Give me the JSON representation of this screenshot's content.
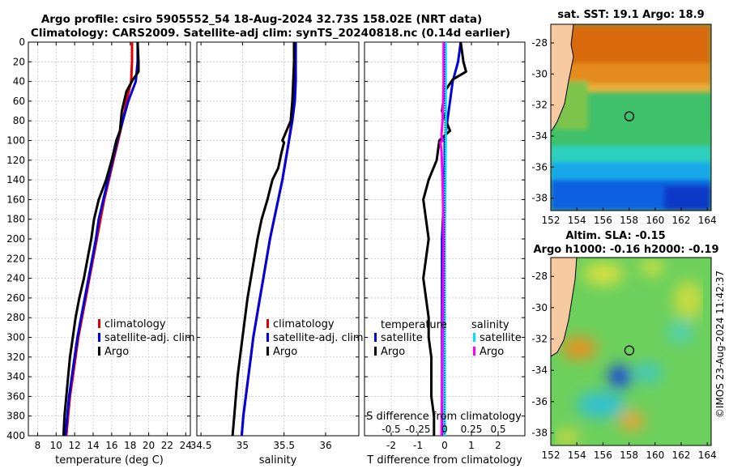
{
  "header": {
    "title_line1": "Argo profile: csiro 5905552_54 18-Aug-2024 32.73S 158.02E (NRT data)",
    "title_line2": "Climatology: CARS2009. Satellite-adj clim: synTS_20240818.nc (0.14d earlier)"
  },
  "credit": "©IMOS 23-Aug-2024 11:42:37",
  "colors": {
    "climatology": "#e00000",
    "satellite": "#0000e0",
    "argo": "#000000",
    "salinity_satellite": "#00e0ff",
    "salinity_argo": "#ff00ff",
    "land": "#f7c9a0",
    "grid": "#b8b8b8"
  },
  "chart_data": [
    {
      "type": "line",
      "name": "temperature-profile",
      "xlabel": "temperature (deg C)",
      "ylabel": "",
      "xlim": [
        7,
        24.5
      ],
      "ylim": [
        400,
        0
      ],
      "xticks": [
        8,
        10,
        12,
        14,
        16,
        18,
        20,
        22,
        24
      ],
      "yticks": [
        0,
        20,
        40,
        60,
        80,
        100,
        120,
        140,
        160,
        180,
        200,
        220,
        240,
        260,
        280,
        300,
        320,
        340,
        360,
        380,
        400
      ],
      "grid": true,
      "legend": [
        "climatology",
        "satellite-adj. clim",
        "Argo"
      ],
      "series": [
        {
          "name": "climatology",
          "color_key": "climatology",
          "points": [
            [
              18.2,
              0
            ],
            [
              18.2,
              20
            ],
            [
              18.1,
              40
            ],
            [
              17.6,
              60
            ],
            [
              17.2,
              80
            ],
            [
              16.7,
              100
            ],
            [
              16.2,
              120
            ],
            [
              15.7,
              140
            ],
            [
              15.2,
              160
            ],
            [
              14.8,
              180
            ],
            [
              14.4,
              200
            ],
            [
              14.0,
              220
            ],
            [
              13.6,
              240
            ],
            [
              13.2,
              260
            ],
            [
              12.8,
              280
            ],
            [
              12.4,
              300
            ],
            [
              12.1,
              320
            ],
            [
              11.8,
              340
            ],
            [
              11.5,
              360
            ],
            [
              11.3,
              380
            ],
            [
              11.1,
              400
            ]
          ]
        },
        {
          "name": "satellite-adj. clim",
          "color_key": "satellite",
          "points": [
            [
              18.8,
              0
            ],
            [
              18.8,
              20
            ],
            [
              18.6,
              40
            ],
            [
              17.8,
              60
            ],
            [
              17.2,
              80
            ],
            [
              16.6,
              100
            ],
            [
              16.1,
              120
            ],
            [
              15.6,
              140
            ],
            [
              15.1,
              160
            ],
            [
              14.6,
              180
            ],
            [
              14.3,
              200
            ],
            [
              13.9,
              220
            ],
            [
              13.5,
              240
            ],
            [
              13.1,
              260
            ],
            [
              12.7,
              280
            ],
            [
              12.3,
              300
            ],
            [
              12.0,
              320
            ],
            [
              11.7,
              340
            ],
            [
              11.4,
              360
            ],
            [
              11.2,
              380
            ],
            [
              11.0,
              400
            ]
          ]
        },
        {
          "name": "Argo",
          "color_key": "argo",
          "points": [
            [
              18.8,
              0
            ],
            [
              18.9,
              20
            ],
            [
              18.9,
              30
            ],
            [
              18.3,
              38
            ],
            [
              17.6,
              50
            ],
            [
              17.1,
              70
            ],
            [
              16.9,
              90
            ],
            [
              16.5,
              100
            ],
            [
              16.0,
              120
            ],
            [
              15.4,
              140
            ],
            [
              14.6,
              160
            ],
            [
              14.1,
              180
            ],
            [
              13.8,
              200
            ],
            [
              13.4,
              220
            ],
            [
              13.0,
              240
            ],
            [
              12.5,
              260
            ],
            [
              12.1,
              280
            ],
            [
              11.8,
              300
            ],
            [
              11.5,
              320
            ],
            [
              11.3,
              340
            ],
            [
              11.1,
              360
            ],
            [
              10.9,
              380
            ],
            [
              10.8,
              400
            ]
          ]
        }
      ]
    },
    {
      "type": "line",
      "name": "salinity-profile",
      "xlabel": "salinity",
      "xlim": [
        34.45,
        36.4
      ],
      "ylim": [
        400,
        0
      ],
      "xticks": [
        34.5,
        35,
        35.5,
        36
      ],
      "xticklabels": [
        "34.5",
        "35",
        "35.5",
        "36"
      ],
      "grid": true,
      "legend": [
        "climatology",
        "satellite-adj. clim",
        "Argo"
      ],
      "series": [
        {
          "name": "climatology",
          "color_key": "climatology",
          "points": [
            [
              35.63,
              0
            ],
            [
              35.63,
              20
            ],
            [
              35.63,
              40
            ],
            [
              35.62,
              60
            ],
            [
              35.59,
              80
            ],
            [
              35.56,
              100
            ],
            [
              35.52,
              120
            ],
            [
              35.48,
              140
            ],
            [
              35.43,
              160
            ],
            [
              35.38,
              180
            ],
            [
              35.33,
              200
            ],
            [
              35.29,
              220
            ],
            [
              35.25,
              240
            ],
            [
              35.21,
              260
            ],
            [
              35.17,
              280
            ],
            [
              35.13,
              300
            ],
            [
              35.1,
              320
            ],
            [
              35.07,
              340
            ],
            [
              35.04,
              360
            ],
            [
              35.01,
              380
            ],
            [
              34.99,
              400
            ]
          ]
        },
        {
          "name": "satellite-adj. clim",
          "color_key": "satellite",
          "points": [
            [
              35.64,
              0
            ],
            [
              35.64,
              20
            ],
            [
              35.64,
              40
            ],
            [
              35.63,
              60
            ],
            [
              35.6,
              80
            ],
            [
              35.56,
              100
            ],
            [
              35.52,
              120
            ],
            [
              35.48,
              140
            ],
            [
              35.43,
              160
            ],
            [
              35.38,
              180
            ],
            [
              35.33,
              200
            ],
            [
              35.29,
              220
            ],
            [
              35.25,
              240
            ],
            [
              35.21,
              260
            ],
            [
              35.17,
              280
            ],
            [
              35.13,
              300
            ],
            [
              35.1,
              320
            ],
            [
              35.07,
              340
            ],
            [
              35.04,
              360
            ],
            [
              35.01,
              380
            ],
            [
              34.99,
              400
            ]
          ]
        },
        {
          "name": "Argo",
          "color_key": "argo",
          "points": [
            [
              35.62,
              0
            ],
            [
              35.62,
              20
            ],
            [
              35.61,
              40
            ],
            [
              35.6,
              60
            ],
            [
              35.58,
              80
            ],
            [
              35.52,
              92
            ],
            [
              35.48,
              100
            ],
            [
              35.5,
              102
            ],
            [
              35.47,
              112
            ],
            [
              35.43,
              128
            ],
            [
              35.36,
              140
            ],
            [
              35.3,
              160
            ],
            [
              35.23,
              180
            ],
            [
              35.18,
              200
            ],
            [
              35.14,
              220
            ],
            [
              35.1,
              240
            ],
            [
              35.06,
              260
            ],
            [
              35.03,
              280
            ],
            [
              35.0,
              300
            ],
            [
              34.97,
              320
            ],
            [
              34.94,
              340
            ],
            [
              34.92,
              360
            ],
            [
              34.9,
              380
            ],
            [
              34.88,
              400
            ]
          ]
        }
      ]
    },
    {
      "type": "line",
      "name": "difference-profile",
      "xlabel": "T difference from climatology",
      "xlabel_top": "S difference from climatology",
      "xlim": [
        -3,
        3
      ],
      "ylim": [
        400,
        0
      ],
      "xticks": [
        -2,
        -1,
        0,
        1,
        2
      ],
      "xticklabels": [
        "-2",
        "-1",
        "0",
        "1",
        "2"
      ],
      "top_ticks": [
        -0.5,
        -0.25,
        0,
        0.25,
        0.5
      ],
      "top_ticklabels": [
        "-0.5",
        "-0.25",
        "0",
        "0.25",
        "0.5"
      ],
      "s_scale": 4,
      "grid": true,
      "legend_titles": [
        "temperature",
        "salinity"
      ],
      "legend": [
        "satellite",
        "Argo",
        "satellite",
        "Argo"
      ],
      "series": [
        {
          "name": "temperature satellite",
          "color_key": "satellite",
          "quantity": "T",
          "points": [
            [
              0.6,
              0
            ],
            [
              0.5,
              20
            ],
            [
              0.3,
              40
            ],
            [
              0.2,
              60
            ],
            [
              0.1,
              80
            ],
            [
              0.0,
              100
            ],
            [
              0.0,
              140
            ],
            [
              -0.1,
              200
            ],
            [
              -0.1,
              300
            ],
            [
              -0.1,
              400
            ]
          ]
        },
        {
          "name": "temperature Argo",
          "color_key": "argo",
          "quantity": "T",
          "points": [
            [
              0.6,
              0
            ],
            [
              0.7,
              20
            ],
            [
              0.8,
              30
            ],
            [
              0.3,
              38
            ],
            [
              0.0,
              50
            ],
            [
              -0.1,
              70
            ],
            [
              0.2,
              90
            ],
            [
              -0.2,
              100
            ],
            [
              -0.3,
              120
            ],
            [
              -0.6,
              140
            ],
            [
              -0.8,
              160
            ],
            [
              -0.7,
              180
            ],
            [
              -0.6,
              200
            ],
            [
              -0.7,
              220
            ],
            [
              -0.8,
              240
            ],
            [
              -0.7,
              260
            ],
            [
              -0.6,
              280
            ],
            [
              -0.6,
              300
            ],
            [
              -0.5,
              320
            ],
            [
              -0.5,
              340
            ],
            [
              -0.5,
              360
            ],
            [
              -0.4,
              380
            ],
            [
              -0.4,
              400
            ]
          ]
        },
        {
          "name": "salinity satellite",
          "color_key": "salinity_satellite",
          "quantity": "S",
          "points": [
            [
              0.01,
              0
            ],
            [
              0.01,
              100
            ],
            [
              0.0,
              200
            ],
            [
              0.0,
              400
            ]
          ]
        },
        {
          "name": "salinity Argo",
          "color_key": "salinity_argo",
          "quantity": "S",
          "points": [
            [
              -0.01,
              0
            ],
            [
              -0.01,
              40
            ],
            [
              -0.02,
              80
            ],
            [
              -0.03,
              95
            ],
            [
              -0.02,
              100
            ],
            [
              -0.04,
              102
            ],
            [
              -0.03,
              110
            ],
            [
              -0.02,
              140
            ],
            [
              -0.01,
              200
            ],
            [
              -0.02,
              300
            ],
            [
              -0.03,
              400
            ]
          ]
        }
      ]
    },
    {
      "type": "heatmap",
      "name": "sst-map",
      "title": "sat. SST: 19.1 Argo: 18.9",
      "xlim": [
        152,
        164.3
      ],
      "ylim": [
        -38.8,
        -26.8
      ],
      "xticks": [
        152,
        154,
        156,
        158,
        160,
        162,
        164
      ],
      "yticks": [
        -28,
        -30,
        -32,
        -34,
        -36,
        -38
      ],
      "marker": [
        158.02,
        -32.73
      ]
    },
    {
      "type": "heatmap",
      "name": "sla-map",
      "title": "Altim. SLA: -0.15",
      "subtitle": "Argo h1000: -0.16 h2000: -0.19",
      "xlim": [
        152,
        164.3
      ],
      "ylim": [
        -38.8,
        -26.8
      ],
      "xticks": [
        152,
        154,
        156,
        158,
        160,
        162,
        164
      ],
      "yticks": [
        -28,
        -30,
        -32,
        -34,
        -36,
        -38
      ],
      "marker": [
        158.02,
        -32.73
      ]
    }
  ]
}
